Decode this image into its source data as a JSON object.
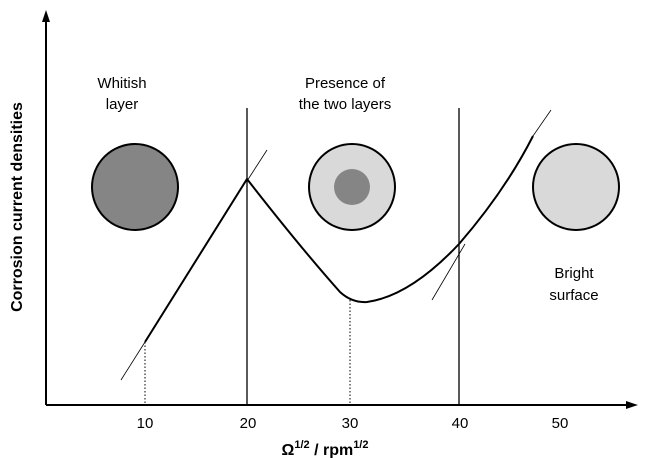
{
  "chart_data": {
    "type": "line",
    "title": "",
    "xlabel": "Ω ¹ᐟ² / rpm ¹ᐟ²",
    "xlabel_parts": {
      "omega": "Ω",
      "exp1": "1/2",
      "unit": " / rpm",
      "exp2": "1/2"
    },
    "ylabel": "Corrosion current densities",
    "xticks": [
      10,
      20,
      30,
      40,
      50
    ],
    "xlim": [
      0,
      57
    ],
    "y_scale": "qualitative (no tick values)",
    "grid": false,
    "curve_description": "rises linearly to a peak at 20, falls to a minimum near 32, rises again beyond 40",
    "curve": [
      {
        "x": 10,
        "y": 0.18
      },
      {
        "x": 20.3,
        "y": 0.74
      },
      {
        "x": 24,
        "y": 0.52
      },
      {
        "x": 27,
        "y": 0.37
      },
      {
        "x": 30,
        "y": 0.31
      },
      {
        "x": 32,
        "y": 0.31
      },
      {
        "x": 35,
        "y": 0.34
      },
      {
        "x": 38,
        "y": 0.42
      },
      {
        "x": 40,
        "y": 0.51
      },
      {
        "x": 43,
        "y": 0.69
      },
      {
        "x": 46,
        "y": 0.89
      },
      {
        "x": 47.5,
        "y": 0.99
      }
    ],
    "boundaries_x": [
      20,
      40
    ],
    "reference_lines_x": [
      10,
      30
    ],
    "regions": [
      {
        "label_lines": [
          "Whitish",
          "layer"
        ],
        "disk": "dark grey",
        "fill": "#858585",
        "inner_fill": null
      },
      {
        "label_lines": [
          "Presence of",
          "the two layers"
        ],
        "disk": "light grey with dark centre",
        "fill": "#d9d9d9",
        "inner_fill": "#858585"
      },
      {
        "label_lines": [
          "Bright",
          "surface"
        ],
        "disk": "light grey",
        "fill": "#d9d9d9",
        "inner_fill": null
      }
    ]
  }
}
